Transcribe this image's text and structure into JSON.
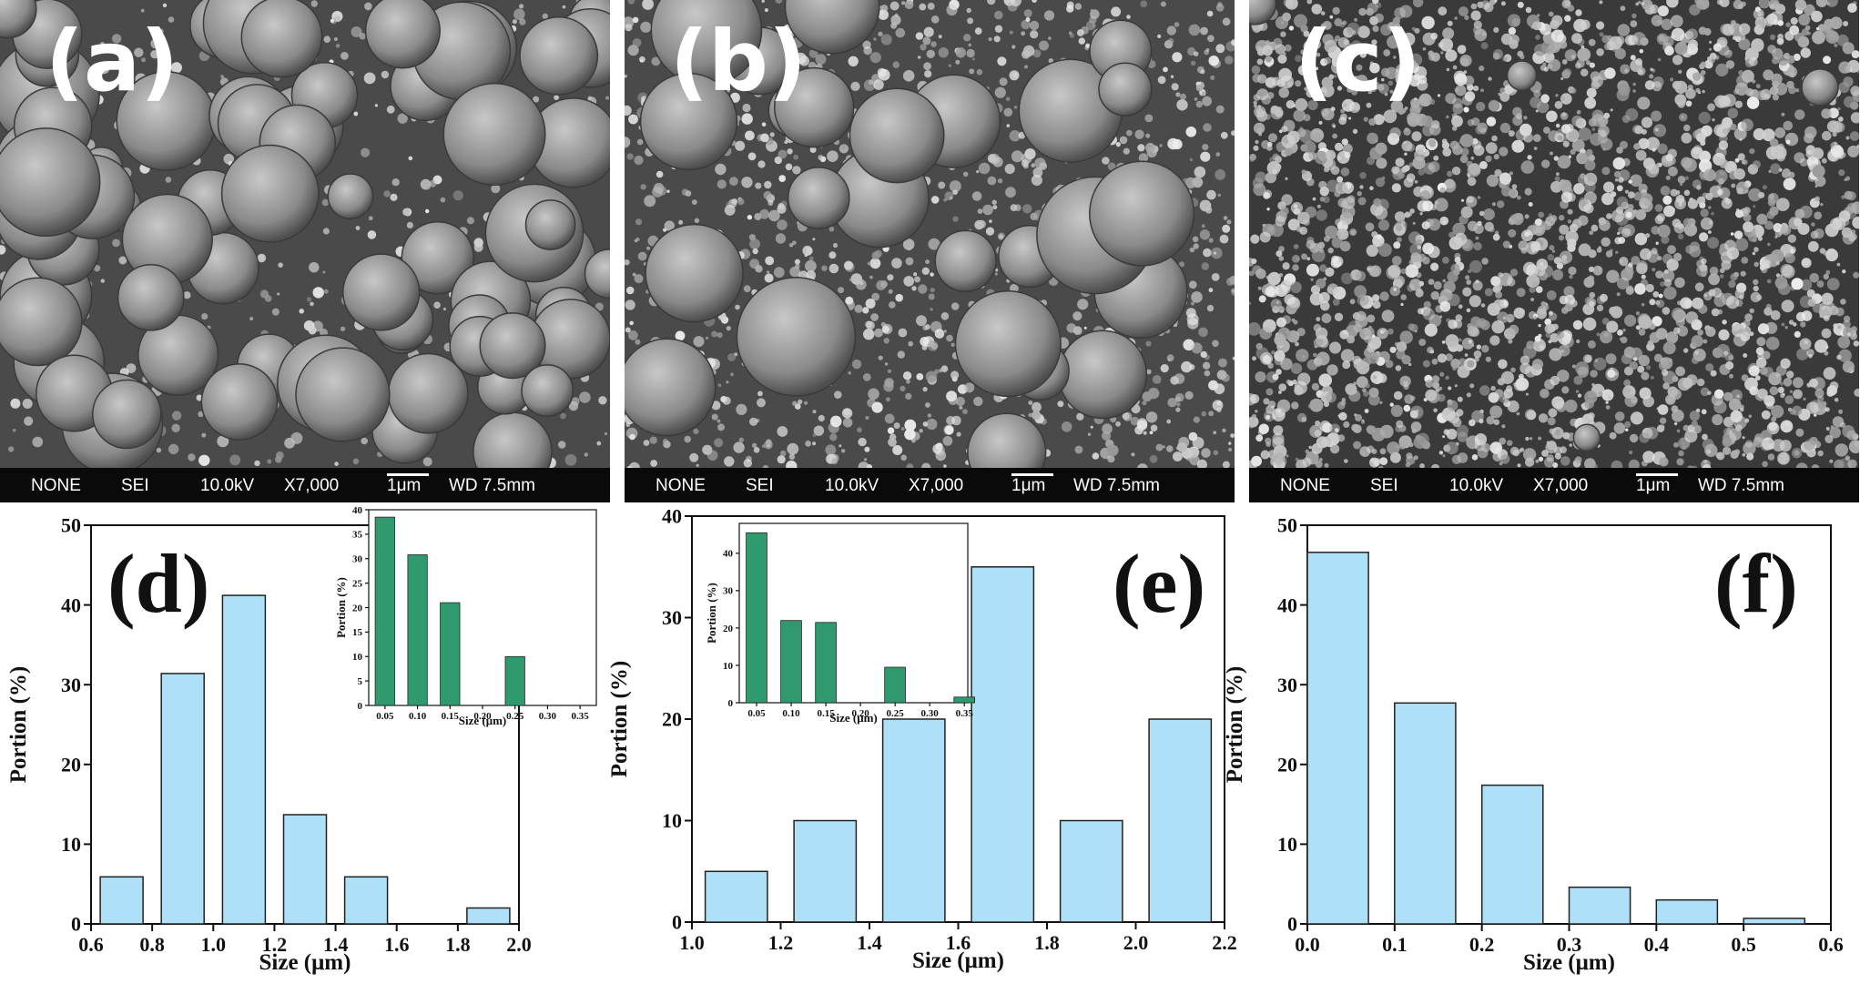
{
  "sem_panels": [
    {
      "label": "(a)",
      "info": {
        "detector": "NONE",
        "mode": "SEI",
        "voltage": "10.0kV",
        "magnification": "X7,000",
        "scale": "1μm",
        "wd": "WD 7.5mm"
      },
      "morphology": "large"
    },
    {
      "label": "(b)",
      "info": {
        "detector": "NONE",
        "mode": "SEI",
        "voltage": "10.0kV",
        "magnification": "X7,000",
        "scale": "1μm",
        "wd": "WD 7.5mm"
      },
      "morphology": "mixed"
    },
    {
      "label": "(c)",
      "info": {
        "detector": "NONE",
        "mode": "SEI",
        "voltage": "10.0kV",
        "magnification": "X7,000",
        "scale": "1μm",
        "wd": "WD 7.5mm"
      },
      "morphology": "fine"
    }
  ],
  "chart_data": [
    {
      "panel": "(d)",
      "type": "bar",
      "xlabel": "Size (μm)",
      "ylabel": "Portion (%)",
      "xlim": [
        0.6,
        2.0
      ],
      "ylim": [
        0,
        50
      ],
      "xticks": [
        "0.6",
        "0.8",
        "1.0",
        "1.2",
        "1.4",
        "1.6",
        "1.8",
        "2.0"
      ],
      "yticks": [
        "0",
        "10",
        "20",
        "30",
        "40",
        "50"
      ],
      "bar_width": 0.14,
      "x": [
        0.7,
        0.9,
        1.1,
        1.3,
        1.5,
        1.9
      ],
      "values": [
        5.9,
        31.4,
        41.2,
        13.7,
        5.9,
        2.0
      ],
      "color": "#aee0f7",
      "inset": {
        "xlabel": "Size (μm)",
        "ylabel": "Portion (%)",
        "xlim": [
          0.025,
          0.375
        ],
        "ylim": [
          0,
          40
        ],
        "xticks": [
          "0.05",
          "0.10",
          "0.15",
          "0.20",
          "0.25",
          "0.30",
          "0.35"
        ],
        "yticks": [
          "0",
          "5",
          "10",
          "15",
          "20",
          "25",
          "30",
          "35",
          "40"
        ],
        "bar_width": 0.03,
        "x": [
          0.05,
          0.1,
          0.15,
          0.25
        ],
        "values": [
          38.5,
          30.8,
          21.0,
          10.0
        ],
        "color": "#2e9a6e"
      }
    },
    {
      "panel": "(e)",
      "type": "bar",
      "xlabel": "Size (μm)",
      "ylabel": "Portion (%)",
      "xlim": [
        1.0,
        2.2
      ],
      "ylim": [
        0,
        40
      ],
      "xticks": [
        "1.0",
        "1.2",
        "1.4",
        "1.6",
        "1.8",
        "2.0",
        "2.2"
      ],
      "yticks": [
        "0",
        "10",
        "20",
        "30",
        "40"
      ],
      "bar_width": 0.14,
      "x": [
        1.1,
        1.3,
        1.5,
        1.7,
        1.9,
        2.1
      ],
      "values": [
        5.0,
        10.0,
        20.0,
        35.0,
        10.0,
        20.0
      ],
      "color": "#aee0f7",
      "inset": {
        "xlabel": "Size (μm)",
        "ylabel": "Portion (%)",
        "xlim": [
          0.025,
          0.355
        ],
        "ylim": [
          0,
          48
        ],
        "xticks": [
          "0.05",
          "0.10",
          "0.15",
          "0.20",
          "0.25",
          "0.30",
          "0.35"
        ],
        "yticks": [
          "0",
          "10",
          "20",
          "30",
          "40"
        ],
        "bar_width": 0.03,
        "x": [
          0.05,
          0.1,
          0.15,
          0.25,
          0.35
        ],
        "values": [
          45.5,
          22.0,
          21.5,
          9.5,
          1.5
        ],
        "color": "#2e9a6e"
      }
    },
    {
      "panel": "(f)",
      "type": "bar",
      "xlabel": "Size (μm)",
      "ylabel": "Portion (%)",
      "xlim": [
        0.0,
        0.6
      ],
      "ylim": [
        0,
        50
      ],
      "xticks": [
        "0.0",
        "0.1",
        "0.2",
        "0.3",
        "0.4",
        "0.5",
        "0.6"
      ],
      "yticks": [
        "0",
        "10",
        "20",
        "30",
        "40",
        "50"
      ],
      "bar_width": 0.07,
      "x": [
        0.035,
        0.135,
        0.235,
        0.335,
        0.435,
        0.535
      ],
      "values": [
        46.6,
        27.7,
        17.4,
        4.6,
        3.0,
        0.7
      ],
      "color": "#aee0f7"
    }
  ]
}
